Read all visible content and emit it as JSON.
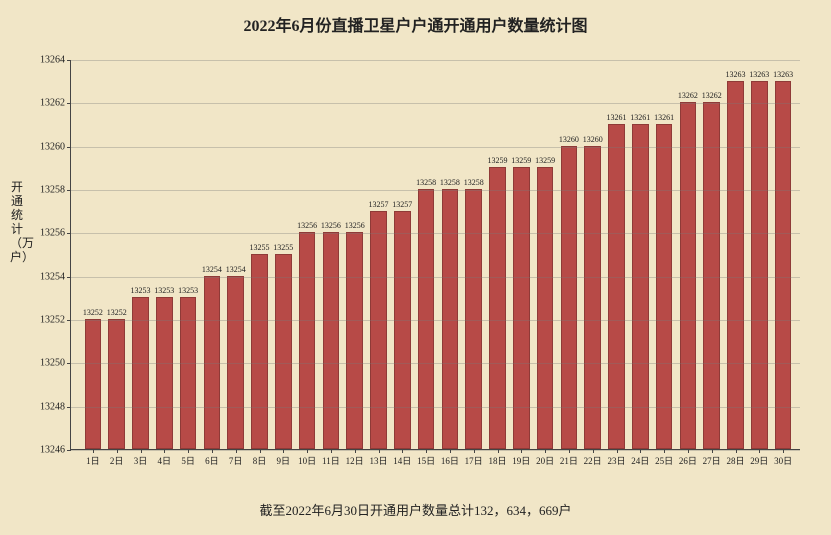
{
  "title": "2022年6月份直播卫星户户通开通用户数量统计图",
  "footer": "截至2022年6月30日开通用户数量总计132，634，669户",
  "ylabel": "开通统计（万户）",
  "chart": {
    "type": "bar",
    "background_color": "#f1e6c7",
    "grid_color": "rgba(120,120,120,0.35)",
    "axis_color": "#444",
    "bar_fill": "#b74a47",
    "bar_border": "#8f3a37",
    "bar_width_ratio": 0.7,
    "ylim": [
      13246,
      13264
    ],
    "ytick_step": 2,
    "title_fontsize": 16,
    "label_fontsize": 12,
    "value_fontsize": 8,
    "xtick_fontsize": 9,
    "ytick_fontsize": 10,
    "categories": [
      "1日",
      "2日",
      "3日",
      "4日",
      "5日",
      "6日",
      "7日",
      "8日",
      "9日",
      "10日",
      "11日",
      "12日",
      "13日",
      "14日",
      "15日",
      "16日",
      "17日",
      "18日",
      "19日",
      "20日",
      "21日",
      "22日",
      "23日",
      "24日",
      "25日",
      "26日",
      "27日",
      "28日",
      "29日",
      "30日"
    ],
    "values": [
      13252,
      13252,
      13253,
      13253,
      13253,
      13254,
      13254,
      13255,
      13255,
      13256,
      13256,
      13256,
      13257,
      13257,
      13258,
      13258,
      13258,
      13259,
      13259,
      13259,
      13260,
      13260,
      13261,
      13261,
      13261,
      13262,
      13262,
      13263,
      13263,
      13263
    ],
    "value_labels": [
      "13252",
      "13252",
      "13253",
      "13253",
      "13253",
      "13254",
      "13254",
      "13255",
      "13255",
      "13256",
      "13256",
      "13256",
      "13257",
      "13257",
      "13258",
      "13258",
      "13258",
      "13259",
      "13259",
      "13259",
      "13260",
      "13260",
      "13261",
      "13261",
      "13261",
      "13262",
      "13262",
      "13263",
      "13263",
      "13263"
    ]
  }
}
